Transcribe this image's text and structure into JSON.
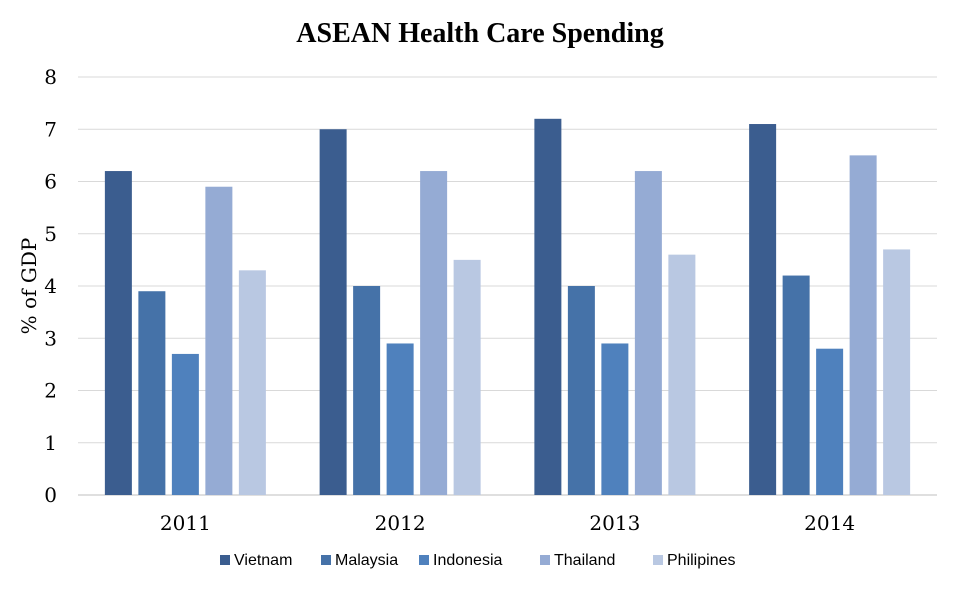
{
  "chart_data": {
    "type": "bar",
    "title": "ASEAN Health Care Spending",
    "xlabel": "",
    "ylabel": "% of GDP",
    "ylim": [
      0,
      8
    ],
    "yticks": [
      "0",
      "1",
      "2",
      "3",
      "4",
      "5",
      "6",
      "7",
      "8"
    ],
    "grid": true,
    "legend_position": "bottom",
    "categories": [
      "2011",
      "2012",
      "2013",
      "2014"
    ],
    "series": [
      {
        "name": "Vietnam",
        "color": "#3b5d8f",
        "values": [
          6.2,
          7.0,
          7.2,
          7.1
        ]
      },
      {
        "name": "Malaysia",
        "color": "#4572a8",
        "values": [
          3.9,
          4.0,
          4.0,
          4.2
        ]
      },
      {
        "name": "Indonesia",
        "color": "#4f81bd",
        "values": [
          2.7,
          2.9,
          2.9,
          2.8
        ]
      },
      {
        "name": "Thailand",
        "color": "#95abd4",
        "values": [
          5.9,
          6.2,
          6.2,
          6.5
        ]
      },
      {
        "name": "Philipines",
        "color": "#b9c8e2",
        "values": [
          4.3,
          4.5,
          4.6,
          4.7
        ]
      }
    ]
  }
}
